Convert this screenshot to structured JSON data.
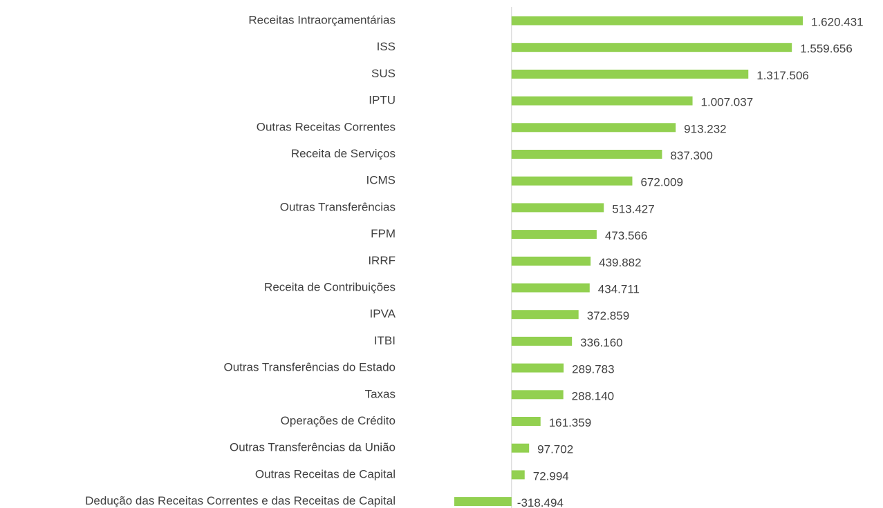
{
  "chart_data": {
    "type": "bar",
    "orientation": "horizontal",
    "color": "#92d050",
    "categories": [
      "Receitas Intraorçamentárias",
      "ISS",
      "SUS",
      "IPTU",
      "Outras Receitas Correntes",
      "Receita de Serviços",
      "ICMS",
      "Outras Transferências",
      "FPM",
      "IRRF",
      "Receita de Contribuições",
      "IPVA",
      "ITBI",
      "Outras Transferências do Estado",
      "Taxas",
      "Operações de Crédito",
      "Outras Transferências da União",
      "Outras Receitas de Capital",
      "Dedução das Receitas Correntes e das Receitas de Capital"
    ],
    "values": [
      1620431,
      1559656,
      1317506,
      1007037,
      913232,
      837300,
      672009,
      513427,
      473566,
      439882,
      434711,
      372859,
      336160,
      289783,
      288140,
      161359,
      97702,
      72994,
      -318494
    ],
    "value_labels": [
      "1.620.431",
      "1.559.656",
      "1.317.506",
      "1.007.037",
      "913.232",
      "837.300",
      "672.009",
      "513.427",
      "473.566",
      "439.882",
      "434.711",
      "372.859",
      "336.160",
      "289.783",
      "288.140",
      "161.359",
      "97.702",
      "72.994",
      "-318.494"
    ]
  }
}
